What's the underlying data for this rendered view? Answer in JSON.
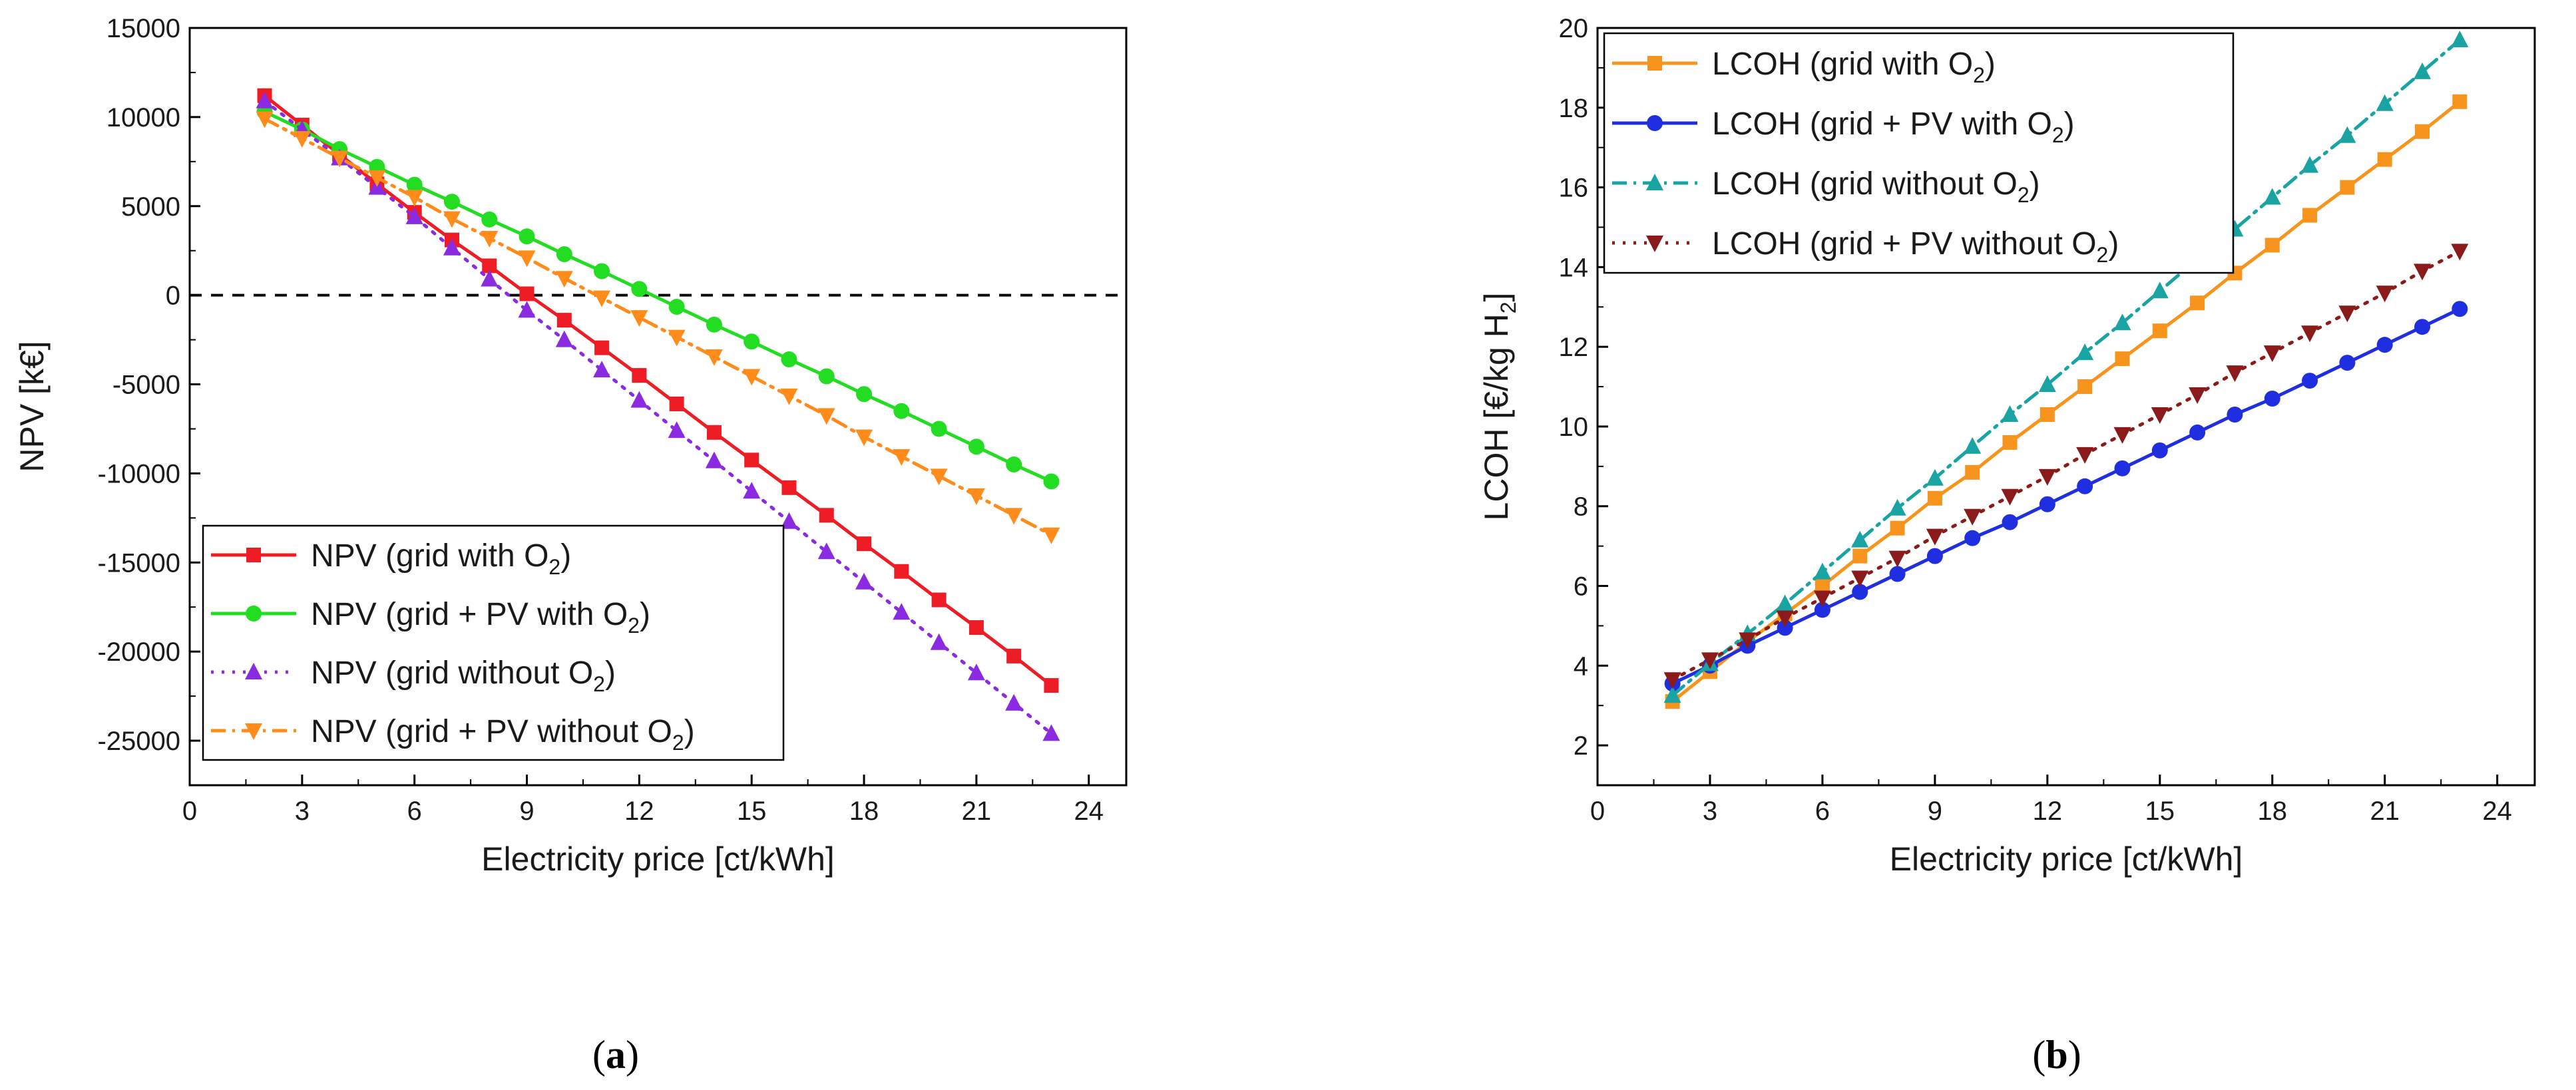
{
  "chart_data": [
    {
      "type": "line",
      "panel_label": "a",
      "ylabel": "NPV [k€]",
      "xlabel": "Electricity price [ct/kWh]",
      "xlim": [
        0,
        25
      ],
      "ylim": [
        -27500,
        15000
      ],
      "xticks": [
        0,
        3,
        6,
        9,
        12,
        15,
        18,
        21,
        24
      ],
      "yticks": [
        -25000,
        -20000,
        -15000,
        -10000,
        -5000,
        0,
        5000,
        10000,
        15000
      ],
      "reference_line": {
        "y": 0,
        "style": "dashed",
        "color": "#000000"
      },
      "legend_position": "bottom-left",
      "x": [
        2,
        3,
        4,
        5,
        6,
        7,
        8,
        9,
        10,
        11,
        12,
        13,
        14,
        15,
        16,
        17,
        18,
        19,
        20,
        21,
        22,
        23
      ],
      "series": [
        {
          "name": "NPV (grid with O",
          "sub": "2",
          "name_end": ")",
          "color": "#ee1c25",
          "marker": "square",
          "line": "solid",
          "values": [
            11200,
            9550,
            7900,
            6250,
            4650,
            3100,
            1650,
            80,
            -1400,
            -2950,
            -4500,
            -6100,
            -7700,
            -9250,
            -10800,
            -12350,
            -13950,
            -15500,
            -17100,
            -18650,
            -20250,
            -21900
          ]
        },
        {
          "name": "NPV (grid + PV with O",
          "sub": "2",
          "name_end": ")",
          "color": "#22dd22",
          "marker": "circle",
          "line": "solid",
          "values": [
            10300,
            9300,
            8200,
            7200,
            6200,
            5250,
            4250,
            3300,
            2300,
            1350,
            350,
            -650,
            -1650,
            -2600,
            -3600,
            -4550,
            -5550,
            -6500,
            -7500,
            -8500,
            -9500,
            -10450
          ]
        },
        {
          "name": "NPV (grid without O",
          "sub": "2",
          "name_end": ")",
          "color": "#8a2be2",
          "marker": "triangle-up",
          "line": "dotted",
          "values": [
            10900,
            9300,
            7700,
            6050,
            4400,
            2650,
            900,
            -850,
            -2500,
            -4200,
            -5900,
            -7600,
            -9300,
            -11000,
            -12700,
            -14400,
            -16100,
            -17800,
            -19500,
            -21200,
            -22900,
            -24600
          ]
        },
        {
          "name": "NPV (grid + PV without O",
          "sub": "2",
          "name_end": ")",
          "color": "#ff8c1a",
          "marker": "triangle-down",
          "line": "dashdot",
          "values": [
            9900,
            8800,
            7700,
            6600,
            5500,
            4300,
            3200,
            2100,
            950,
            -150,
            -1250,
            -2350,
            -3450,
            -4550,
            -5650,
            -6750,
            -7950,
            -9050,
            -10150,
            -11250,
            -12350,
            -13450
          ]
        }
      ]
    },
    {
      "type": "line",
      "panel_label": "b",
      "ylabel": "LCOH [€/kg H",
      "ylabel_sub": "2",
      "ylabel_end": "]",
      "xlabel": "Electricity price [ct/kWh]",
      "xlim": [
        0,
        25
      ],
      "ylim": [
        1,
        20
      ],
      "xticks": [
        0,
        3,
        6,
        9,
        12,
        15,
        18,
        21,
        24
      ],
      "yticks": [
        2,
        4,
        6,
        8,
        10,
        12,
        14,
        16,
        18,
        20
      ],
      "legend_position": "top-left",
      "x": [
        2,
        3,
        4,
        5,
        6,
        7,
        8,
        9,
        10,
        11,
        12,
        13,
        14,
        15,
        16,
        17,
        18,
        19,
        20,
        21,
        22,
        23
      ],
      "series": [
        {
          "name": "LCOH (grid with O",
          "sub": "2",
          "name_end": ")",
          "color": "#f7941d",
          "marker": "square",
          "line": "solid",
          "values": [
            3.1,
            3.85,
            4.6,
            5.3,
            6.0,
            6.75,
            7.45,
            8.2,
            8.85,
            9.6,
            10.3,
            11.0,
            11.7,
            12.4,
            13.1,
            13.85,
            14.55,
            15.3,
            16.0,
            16.7,
            17.4,
            18.15
          ]
        },
        {
          "name": "LCOH (grid + PV with O",
          "sub": "2",
          "name_end": ")",
          "color": "#1f2fe0",
          "marker": "circle",
          "line": "solid",
          "values": [
            3.55,
            4.0,
            4.5,
            4.95,
            5.4,
            5.85,
            6.3,
            6.75,
            7.2,
            7.6,
            8.05,
            8.5,
            8.95,
            9.4,
            9.85,
            10.3,
            10.7,
            11.15,
            11.6,
            12.05,
            12.5,
            12.95
          ]
        },
        {
          "name": "LCOH (grid without O",
          "sub": "2",
          "name_end": ")",
          "color": "#1aa3a3",
          "marker": "triangle-up",
          "line": "dashdot",
          "values": [
            3.25,
            4.05,
            4.8,
            5.55,
            6.35,
            7.15,
            7.95,
            8.7,
            9.5,
            10.3,
            11.05,
            11.85,
            12.6,
            13.4,
            14.2,
            14.95,
            15.75,
            16.55,
            17.3,
            18.1,
            18.9,
            19.7
          ]
        },
        {
          "name": "LCOH (grid + PV without O",
          "sub": "2",
          "name_end": ")",
          "color": "#8b1a1a",
          "marker": "triangle-down",
          "line": "dotted",
          "values": [
            3.65,
            4.15,
            4.65,
            5.2,
            5.7,
            6.2,
            6.7,
            7.25,
            7.75,
            8.25,
            8.75,
            9.3,
            9.8,
            10.3,
            10.8,
            11.35,
            11.85,
            12.35,
            12.85,
            13.35,
            13.9,
            14.4
          ]
        }
      ]
    }
  ]
}
